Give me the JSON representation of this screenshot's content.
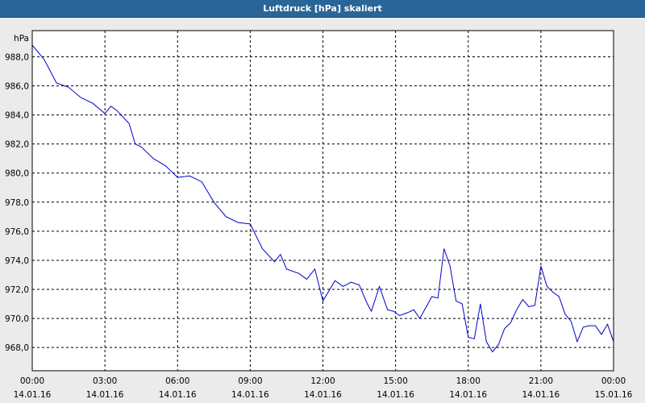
{
  "title": "Luftdruck [hPa] skaliert",
  "colors": {
    "titlebar": "#2a6597",
    "background": "#ebebeb",
    "plot_bg": "#ffffff",
    "line": "#0000cc",
    "grid": "#000000"
  },
  "chart_data": {
    "type": "line",
    "title": "Luftdruck [hPa] skaliert",
    "ylabel": "hPa",
    "xlabel": "",
    "ylim": [
      966.4,
      989.8
    ],
    "xlim": [
      "2016-01-14 00:00",
      "2016-01-15 00:00"
    ],
    "grid": true,
    "legend": "none",
    "y_ticks": [
      "968,0",
      "970,0",
      "972,0",
      "974,0",
      "976,0",
      "978,0",
      "980,0",
      "982,0",
      "984,0",
      "986,0",
      "988,0"
    ],
    "x_ticks": [
      {
        "time": "00:00",
        "date": "14.01.16"
      },
      {
        "time": "03:00",
        "date": "14.01.16"
      },
      {
        "time": "06:00",
        "date": "14.01.16"
      },
      {
        "time": "09:00",
        "date": "14.01.16"
      },
      {
        "time": "12:00",
        "date": "14.01.16"
      },
      {
        "time": "15:00",
        "date": "14.01.16"
      },
      {
        "time": "18:00",
        "date": "14.01.16"
      },
      {
        "time": "21:00",
        "date": "14.01.16"
      },
      {
        "time": "00:00",
        "date": "15.01.16"
      }
    ],
    "series": [
      {
        "x": [
          "00:00",
          "00:30",
          "01:00",
          "01:30",
          "02:00",
          "02:30",
          "03:00",
          "03:15",
          "03:30",
          "04:00",
          "04:15",
          "04:30",
          "05:00",
          "05:30",
          "06:00",
          "06:30",
          "07:00",
          "07:30",
          "08:00",
          "08:30",
          "09:00",
          "09:30",
          "10:00",
          "10:15",
          "10:30",
          "11:00",
          "11:20",
          "11:40",
          "12:00",
          "12:30",
          "12:50",
          "13:10",
          "13:30",
          "13:50",
          "14:00",
          "14:20",
          "14:40",
          "14:55",
          "15:10",
          "15:30",
          "15:45",
          "16:00",
          "16:30",
          "16:45",
          "17:00",
          "17:15",
          "17:30",
          "17:45",
          "18:00",
          "18:15",
          "18:30",
          "18:45",
          "19:00",
          "19:15",
          "19:30",
          "19:45",
          "20:00",
          "20:15",
          "20:30",
          "20:45",
          "21:00",
          "21:15",
          "21:30",
          "21:45",
          "22:00",
          "22:15",
          "22:30",
          "22:45",
          "23:00",
          "23:15",
          "23:30",
          "23:45",
          "24:00"
        ],
        "y": [
          988.8,
          987.8,
          986.2,
          985.9,
          985.2,
          984.8,
          984.1,
          984.6,
          984.3,
          983.4,
          982.0,
          981.8,
          981.0,
          980.5,
          979.7,
          979.8,
          979.4,
          978.0,
          977.0,
          976.6,
          976.5,
          974.8,
          973.9,
          974.4,
          973.4,
          973.1,
          972.7,
          973.4,
          971.2,
          972.6,
          972.2,
          972.5,
          972.3,
          971.0,
          970.5,
          972.2,
          970.6,
          970.5,
          970.2,
          970.4,
          970.6,
          970.0,
          971.5,
          971.4,
          974.8,
          973.6,
          971.2,
          971.0,
          968.7,
          968.6,
          971.0,
          968.4,
          967.7,
          968.2,
          969.3,
          969.7,
          970.6,
          971.3,
          970.8,
          970.9,
          973.6,
          972.2,
          971.8,
          971.5,
          970.3,
          969.8,
          968.4,
          969.4,
          969.5,
          969.5,
          968.9,
          969.6,
          968.4
        ]
      }
    ]
  }
}
